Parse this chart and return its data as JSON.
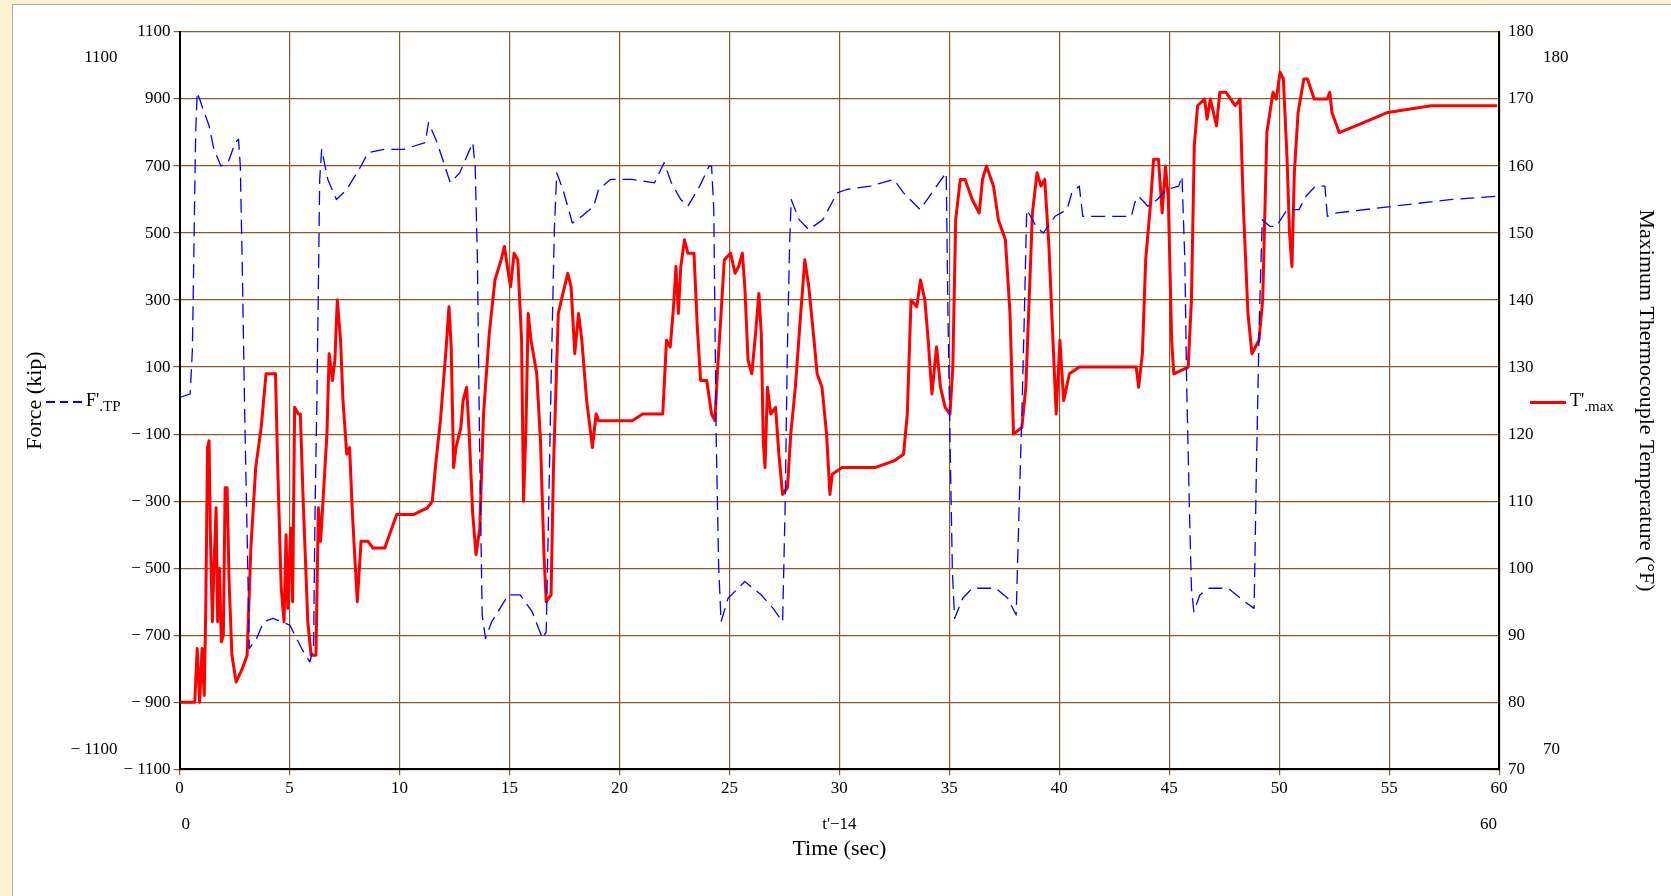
{
  "chart_data": {
    "type": "line",
    "xlabel": "Time (sec)",
    "ylabel": "Force (kip)",
    "y2label": "Maximum Thermocouple Temperature (°F)",
    "xlim": [
      0,
      60
    ],
    "xticks": [
      0,
      5,
      10,
      15,
      20,
      25,
      30,
      35,
      40,
      45,
      50,
      55,
      60
    ],
    "ylim": [
      -1100,
      1100
    ],
    "yticks": [
      {
        "value": -1100,
        "label": "− 1100"
      },
      {
        "value": -900,
        "label": "− 900"
      },
      {
        "value": -700,
        "label": "− 700"
      },
      {
        "value": -500,
        "label": "− 500"
      },
      {
        "value": -300,
        "label": "− 300"
      },
      {
        "value": -100,
        "label": "− 100"
      },
      100,
      300,
      500,
      700,
      900,
      1100
    ],
    "y2lim": [
      70,
      180
    ],
    "y2ticks": [
      70,
      80,
      90,
      100,
      110,
      120,
      130,
      140,
      150,
      160,
      170,
      180
    ],
    "grid": true,
    "legend": "left",
    "annotations": [
      "1100",
      "− 1100",
      "180",
      "70",
      "0",
      "60",
      "t'−14"
    ],
    "series": [
      {
        "name": "F'$_{.TP}$",
        "color": "#0000ff",
        "line_style": "dashed",
        "x": [
          0.04,
          0.48,
          0.58,
          0.65,
          0.73,
          0.8,
          0.91,
          1.12,
          1.34,
          1.56,
          1.88,
          2.2,
          2.53,
          2.68,
          2.76,
          2.85,
          2.96,
          3.07,
          3.17,
          3.5,
          3.82,
          4.25,
          5.01,
          5.55,
          5.92,
          6.09,
          6.16,
          6.24,
          6.31,
          6.37,
          6.46,
          6.74,
          7.13,
          7.6,
          8.25,
          8.57,
          9.33,
          10.19,
          11.17,
          11.32,
          11.71,
          12.31,
          12.74,
          13.33,
          13.44,
          13.54,
          13.65,
          13.76,
          13.91,
          14.19,
          14.95,
          15.49,
          16.03,
          16.5,
          16.67,
          16.78,
          16.89,
          17.04,
          17.15,
          17.43,
          17.86,
          18.29,
          18.83,
          19.05,
          19.59,
          20.58,
          21.6,
          22.03,
          22.36,
          22.79,
          23.11,
          23.65,
          24.08,
          24.19,
          24.29,
          24.4,
          24.51,
          24.62,
          24.94,
          25.7,
          26.45,
          26.99,
          27.42,
          27.53,
          27.64,
          27.74,
          27.81,
          28.17,
          28.61,
          29.25,
          29.9,
          30.33,
          31.41,
          32.48,
          32.92,
          33.67,
          34.42,
          34.86,
          34.94,
          35.03,
          35.14,
          35.24,
          35.61,
          36.04,
          37.12,
          37.66,
          38.04,
          38.17,
          38.3,
          38.41,
          38.52,
          38.95,
          39.27,
          39.81,
          40.35,
          40.57,
          40.91,
          41.07,
          43.28,
          43.43,
          43.61,
          44.03,
          44.46,
          44.89,
          45.43,
          45.58,
          45.71,
          45.79,
          45.92,
          46.01,
          46.12,
          46.39,
          46.82,
          47.68,
          48.43,
          48.86,
          48.97,
          49.1,
          49.23,
          49.57,
          49.87,
          50.36,
          50.9,
          51.22,
          51.65,
          52.08,
          52.19,
          52.62,
          55.19,
          57.77,
          60
        ],
        "values": [
          10,
          20,
          150,
          450,
          800,
          920,
          900,
          860,
          820,
          750,
          700,
          710,
          770,
          780,
          700,
          400,
          -40,
          -400,
          -740,
          -710,
          -660,
          -650,
          -670,
          -740,
          -780,
          -740,
          -320,
          -10,
          340,
          660,
          750,
          660,
          600,
          630,
          700,
          740,
          750,
          750,
          770,
          830,
          770,
          650,
          680,
          770,
          700,
          430,
          -180,
          -640,
          -710,
          -660,
          -580,
          -580,
          -630,
          -710,
          -690,
          -330,
          50,
          510,
          680,
          630,
          530,
          550,
          580,
          630,
          660,
          660,
          650,
          710,
          650,
          600,
          580,
          640,
          700,
          700,
          570,
          -110,
          -490,
          -660,
          -590,
          -540,
          -580,
          -620,
          -660,
          -330,
          160,
          470,
          600,
          540,
          510,
          540,
          620,
          630,
          640,
          660,
          620,
          570,
          640,
          680,
          250,
          -110,
          -510,
          -650,
          -590,
          -560,
          -560,
          -590,
          -640,
          -330,
          -40,
          250,
          570,
          520,
          500,
          550,
          570,
          620,
          640,
          550,
          550,
          590,
          610,
          580,
          600,
          630,
          640,
          670,
          420,
          60,
          -330,
          -560,
          -630,
          -580,
          -560,
          -560,
          -600,
          -620,
          -180,
          250,
          540,
          520,
          520,
          570,
          570,
          610,
          640,
          640,
          550,
          560,
          580,
          600,
          610
        ]
      },
      {
        "name": "T'$_{.max}$",
        "color": "#ff0000",
        "axis": "y2",
        "line_style": "solid",
        "x": [
          0.04,
          0.69,
          0.8,
          0.91,
          1.02,
          1.12,
          1.19,
          1.27,
          1.34,
          1.4,
          1.49,
          1.56,
          1.66,
          1.73,
          1.81,
          1.9,
          1.99,
          2.07,
          2.16,
          2.25,
          2.38,
          2.57,
          2.85,
          3.07,
          3.24,
          3.46,
          3.71,
          3.93,
          4.36,
          4.47,
          4.62,
          4.75,
          4.84,
          4.92,
          5.05,
          5.14,
          5.23,
          5.4,
          5.49,
          5.62,
          5.83,
          5.98,
          6.2,
          6.31,
          6.41,
          6.52,
          6.7,
          6.8,
          6.95,
          7.06,
          7.17,
          7.32,
          7.43,
          7.6,
          7.73,
          7.86,
          8.08,
          8.25,
          8.57,
          8.79,
          9.33,
          9.87,
          10.63,
          11.27,
          11.49,
          11.66,
          11.86,
          12.1,
          12.25,
          12.35,
          12.46,
          12.57,
          12.79,
          12.89,
          13.05,
          13.17,
          13.33,
          13.48,
          13.65,
          13.82,
          14.08,
          14.34,
          14.62,
          14.77,
          14.95,
          15.05,
          15.21,
          15.38,
          15.55,
          15.64,
          15.75,
          15.85,
          15.98,
          16.24,
          16.41,
          16.57,
          16.67,
          16.89,
          17,
          17.22,
          17.43,
          17.65,
          17.8,
          17.97,
          18.14,
          18.29,
          18.51,
          18.66,
          18.77,
          18.94,
          19.05,
          20.58,
          21.06,
          21.97,
          22.14,
          22.31,
          22.46,
          22.57,
          22.68,
          22.79,
          22.96,
          23.11,
          23.39,
          23.54,
          23.69,
          23.97,
          24.19,
          24.34,
          24.47,
          24.62,
          24.77,
          25.05,
          25.26,
          25.42,
          25.59,
          25.7,
          25.85,
          26.02,
          26.19,
          26.34,
          26.45,
          26.54,
          26.62,
          26.73,
          26.88,
          27.1,
          27.25,
          27.42,
          27.64,
          27.79,
          28,
          28.22,
          28.43,
          28.61,
          28.82,
          28.99,
          29.21,
          29.42,
          29.57,
          29.68,
          30.11,
          31.62,
          32.48,
          32.92,
          33.09,
          33.26,
          33.52,
          33.69,
          33.89,
          34.04,
          34.21,
          34.42,
          34.6,
          34.81,
          35.03,
          35.16,
          35.29,
          35.5,
          35.72,
          36.04,
          36.36,
          36.51,
          36.69,
          37.01,
          37.23,
          37.55,
          37.76,
          37.92,
          38.3,
          38.48,
          38.63,
          38.78,
          38.99,
          39.17,
          39.34,
          39.53,
          39.7,
          39.86,
          40.03,
          40.2,
          40.46,
          40.91,
          41.14,
          43.5,
          43.61,
          43.78,
          43.93,
          44.14,
          44.29,
          44.51,
          44.68,
          44.83,
          44.96,
          45.11,
          45.21,
          45.86,
          46.01,
          46.14,
          46.29,
          46.61,
          46.72,
          46.87,
          47.15,
          47.3,
          47.58,
          48,
          48.22,
          48.37,
          48.58,
          48.76,
          49.08,
          49.25,
          49.44,
          49.72,
          49.87,
          50.04,
          50.19,
          50.36,
          50.47,
          50.58,
          50.69,
          50.86,
          51.12,
          51.29,
          51.59,
          52.19,
          52.3,
          52.4,
          52.73,
          53.48,
          54.94,
          56.91,
          59.91
        ],
        "values": [
          80,
          80,
          88,
          80,
          88,
          81,
          94,
          118,
          119,
          105,
          92,
          100,
          109,
          92,
          100,
          89,
          90,
          112,
          112,
          98,
          87,
          83,
          85,
          87,
          103,
          115,
          121,
          129,
          129,
          114,
          97,
          92,
          105,
          94,
          106,
          95,
          124,
          123,
          123,
          110,
          92,
          87,
          87,
          109,
          104,
          110,
          120,
          132,
          128,
          131,
          140,
          134,
          125,
          117,
          118,
          108,
          95,
          104,
          104,
          103,
          103,
          108,
          108,
          109,
          110,
          116,
          122,
          132,
          139,
          133,
          115,
          118,
          121,
          125,
          127,
          120,
          108,
          102,
          106,
          123,
          135,
          143,
          146,
          148,
          144,
          142,
          147,
          146,
          134,
          110,
          121,
          138,
          134,
          129,
          119,
          102,
          95,
          96,
          115,
          138,
          141,
          144,
          142,
          132,
          138,
          134,
          125,
          121,
          118,
          123,
          122,
          122,
          123,
          123,
          134,
          133,
          139,
          145,
          138,
          145,
          149,
          147,
          147,
          136,
          128,
          128,
          123,
          122,
          130,
          138,
          146,
          147,
          144,
          145,
          147,
          142,
          131,
          129,
          135,
          141,
          135,
          119,
          115,
          127,
          123,
          124,
          117,
          111,
          112,
          120,
          127,
          137,
          146,
          142,
          135,
          129,
          127,
          120,
          111,
          114,
          115,
          115,
          116,
          117,
          123,
          140,
          139,
          143,
          140,
          134,
          126,
          133,
          127,
          124,
          123,
          130,
          152,
          158,
          158,
          155,
          153,
          158,
          160,
          157,
          152,
          149,
          138,
          120,
          121,
          127,
          140,
          153,
          159,
          157,
          158,
          148,
          135,
          123,
          134,
          125,
          129,
          130,
          130,
          130,
          127,
          132,
          146,
          154,
          161,
          161,
          153,
          160,
          155,
          134,
          129,
          130,
          140,
          163,
          169,
          170,
          167,
          170,
          166,
          171,
          171,
          169,
          170,
          154,
          138,
          132,
          134,
          140,
          165,
          171,
          170,
          174,
          173,
          161,
          150,
          145,
          159,
          168,
          173,
          173,
          170,
          170,
          171,
          168,
          165,
          166,
          168,
          169,
          169
        ]
      }
    ]
  }
}
